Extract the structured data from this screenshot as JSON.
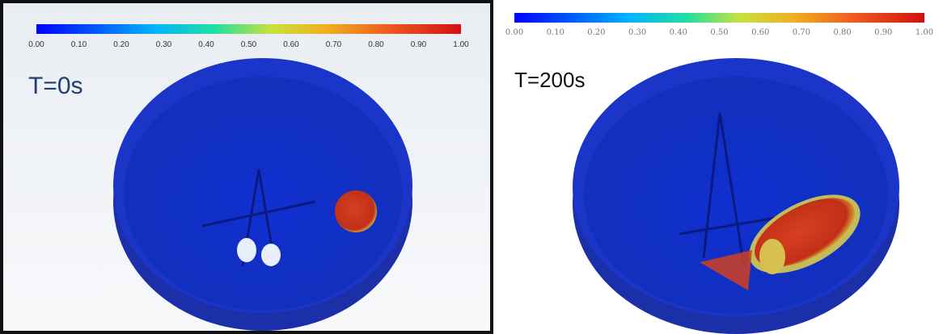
{
  "panels": [
    {
      "label": "T=0s",
      "colorbar_ticks": [
        "0.00",
        "0.10",
        "0.20",
        "0.30",
        "0.40",
        "0.50",
        "0.60",
        "0.70",
        "0.80",
        "0.90",
        "1.00"
      ]
    },
    {
      "label": "T=200s",
      "colorbar_ticks": [
        "0.00",
        "0.10",
        "0.20",
        "0.30",
        "0.40",
        "0.50",
        "0.60",
        "0.70",
        "0.80",
        "0.90",
        "1.00"
      ]
    }
  ]
}
